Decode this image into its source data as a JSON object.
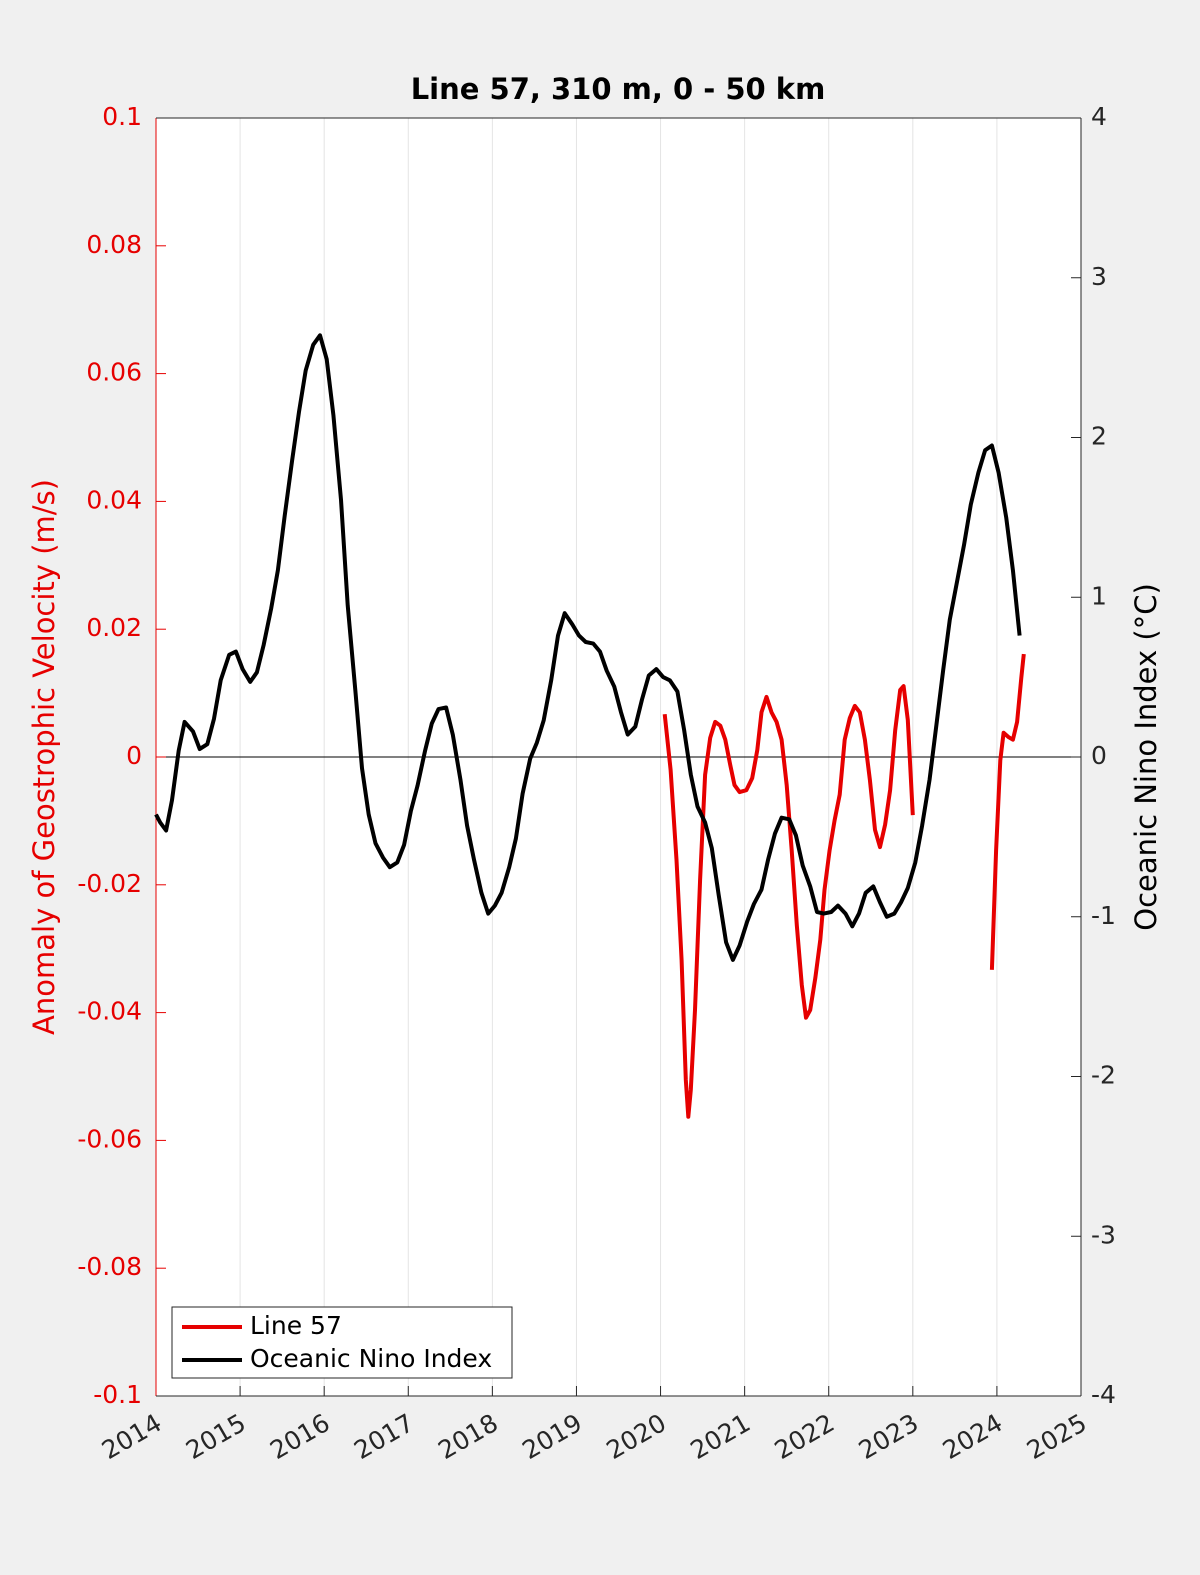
{
  "chart_data": {
    "type": "line",
    "title": "Line 57, 310 m, 0 - 50 km",
    "ylabel": "Anomaly of Geostrophic Velocity (m/s)",
    "y2label": "Oceanic Nino Index (°C)",
    "xlim": [
      2014,
      2025
    ],
    "xticks": [
      2014,
      2015,
      2016,
      2017,
      2018,
      2019,
      2020,
      2021,
      2022,
      2023,
      2024,
      2025
    ],
    "ylim": [
      -0.1,
      0.1
    ],
    "yticks": [
      -0.1,
      -0.08,
      -0.06,
      -0.04,
      -0.02,
      0,
      0.02,
      0.04,
      0.06,
      0.08,
      0.1
    ],
    "y2lim": [
      -4,
      4
    ],
    "y2ticks": [
      -4,
      -3,
      -2,
      -1,
      0,
      1,
      2,
      3,
      4
    ],
    "ycolor": "#e60000",
    "grid": true,
    "zero_line": true,
    "legend": "lower left",
    "series": [
      {
        "name": "Line 57",
        "color": "#e60000",
        "axis": "y",
        "x": [
          2020.05,
          2020.12,
          2020.19,
          2020.25,
          2020.3,
          2020.33,
          2020.36,
          2020.41,
          2020.47,
          2020.53,
          2020.59,
          2020.65,
          2020.71,
          2020.77,
          2020.83,
          2020.88,
          2020.94,
          2021.02,
          2021.09,
          2021.15,
          2021.2,
          2021.26,
          2021.32,
          2021.38,
          2021.44,
          2021.5,
          2021.56,
          2021.62,
          2021.68,
          2021.73,
          2021.78,
          2021.84,
          2021.9,
          2021.95,
          2022.01,
          2022.07,
          2022.13,
          2022.19,
          2022.25,
          2022.31,
          2022.37,
          2022.43,
          2022.49,
          2022.55,
          2022.61,
          2022.67,
          2022.73,
          2022.79,
          2022.85,
          2022.89,
          2022.94,
          2023.0,
          null,
          2023.94,
          2023.99,
          2024.04,
          2024.08,
          2024.14,
          2024.19,
          2024.24,
          2024.29,
          2024.32
        ],
        "values": [
          0.0067,
          -0.002,
          -0.0161,
          -0.0318,
          -0.0505,
          -0.0563,
          -0.0521,
          -0.0396,
          -0.0192,
          -0.0028,
          0.003,
          0.0055,
          0.0049,
          0.0027,
          -0.0013,
          -0.0044,
          -0.0055,
          -0.0052,
          -0.0033,
          0.0011,
          0.007,
          0.0094,
          0.007,
          0.0055,
          0.0027,
          -0.0044,
          -0.0146,
          -0.0263,
          -0.0357,
          -0.0408,
          -0.0396,
          -0.0346,
          -0.0286,
          -0.0208,
          -0.0146,
          -0.0099,
          -0.0059,
          0.0027,
          0.0061,
          0.008,
          0.007,
          0.0027,
          -0.0036,
          -0.0114,
          -0.0141,
          -0.0106,
          -0.0052,
          0.0042,
          0.0105,
          0.0111,
          0.0058,
          -0.0091,
          null,
          -0.0333,
          -0.0146,
          -0.0005,
          0.0038,
          0.0031,
          0.0027,
          0.0055,
          0.0124,
          0.0161
        ]
      },
      {
        "name": "Oceanic Nino Index",
        "color": "#000000",
        "axis": "y2",
        "x": [
          2014.0,
          2014.05,
          2014.12,
          2014.19,
          2014.27,
          2014.34,
          2014.44,
          2014.52,
          2014.61,
          2014.69,
          2014.77,
          2014.87,
          2014.95,
          2015.03,
          2015.12,
          2015.2,
          2015.28,
          2015.37,
          2015.45,
          2015.53,
          2015.62,
          2015.7,
          2015.78,
          2015.87,
          2015.95,
          2016.03,
          2016.11,
          2016.2,
          2016.28,
          2016.37,
          2016.45,
          2016.53,
          2016.61,
          2016.7,
          2016.78,
          2016.87,
          2016.95,
          2017.03,
          2017.11,
          2017.2,
          2017.28,
          2017.36,
          2017.45,
          2017.53,
          2017.62,
          2017.7,
          2017.78,
          2017.87,
          2017.95,
          2018.03,
          2018.11,
          2018.2,
          2018.28,
          2018.36,
          2018.45,
          2018.53,
          2018.61,
          2018.7,
          2018.78,
          2018.86,
          2018.95,
          2019.03,
          2019.11,
          2019.2,
          2019.28,
          2019.36,
          2019.45,
          2019.53,
          2019.61,
          2019.7,
          2019.78,
          2019.86,
          2019.95,
          2020.03,
          2020.11,
          2020.2,
          2020.28,
          2020.36,
          2020.44,
          2020.53,
          2020.61,
          2020.69,
          2020.78,
          2020.86,
          2020.94,
          2021.03,
          2021.11,
          2021.2,
          2021.28,
          2021.36,
          2021.44,
          2021.53,
          2021.61,
          2021.69,
          2021.78,
          2021.86,
          2021.94,
          2022.03,
          2022.11,
          2022.2,
          2022.28,
          2022.36,
          2022.44,
          2022.53,
          2022.61,
          2022.69,
          2022.78,
          2022.86,
          2022.94,
          2023.03,
          2023.11,
          2023.2,
          2023.28,
          2023.36,
          2023.44,
          2023.53,
          2023.61,
          2023.69,
          2023.78,
          2023.86,
          2023.94,
          2024.02,
          2024.11,
          2024.19,
          2024.27
        ],
        "values": [
          -0.36,
          -0.41,
          -0.46,
          -0.27,
          0.04,
          0.22,
          0.16,
          0.05,
          0.08,
          0.24,
          0.48,
          0.64,
          0.66,
          0.55,
          0.47,
          0.53,
          0.7,
          0.93,
          1.17,
          1.51,
          1.86,
          2.16,
          2.42,
          2.58,
          2.64,
          2.49,
          2.14,
          1.61,
          0.95,
          0.42,
          -0.07,
          -0.36,
          -0.54,
          -0.63,
          -0.69,
          -0.66,
          -0.55,
          -0.34,
          -0.18,
          0.04,
          0.21,
          0.3,
          0.31,
          0.14,
          -0.14,
          -0.43,
          -0.64,
          -0.85,
          -0.98,
          -0.93,
          -0.85,
          -0.69,
          -0.51,
          -0.23,
          -0.01,
          0.09,
          0.23,
          0.48,
          0.76,
          0.9,
          0.83,
          0.76,
          0.72,
          0.71,
          0.66,
          0.54,
          0.44,
          0.28,
          0.14,
          0.19,
          0.36,
          0.51,
          0.55,
          0.5,
          0.48,
          0.41,
          0.17,
          -0.11,
          -0.31,
          -0.41,
          -0.57,
          -0.86,
          -1.16,
          -1.27,
          -1.18,
          -1.03,
          -0.92,
          -0.83,
          -0.64,
          -0.48,
          -0.38,
          -0.39,
          -0.49,
          -0.68,
          -0.81,
          -0.97,
          -0.98,
          -0.97,
          -0.93,
          -0.98,
          -1.06,
          -0.98,
          -0.85,
          -0.81,
          -0.91,
          -1.0,
          -0.98,
          -0.91,
          -0.82,
          -0.66,
          -0.43,
          -0.14,
          0.2,
          0.54,
          0.86,
          1.11,
          1.33,
          1.58,
          1.78,
          1.92,
          1.95,
          1.78,
          1.5,
          1.17,
          0.76
        ]
      }
    ]
  }
}
